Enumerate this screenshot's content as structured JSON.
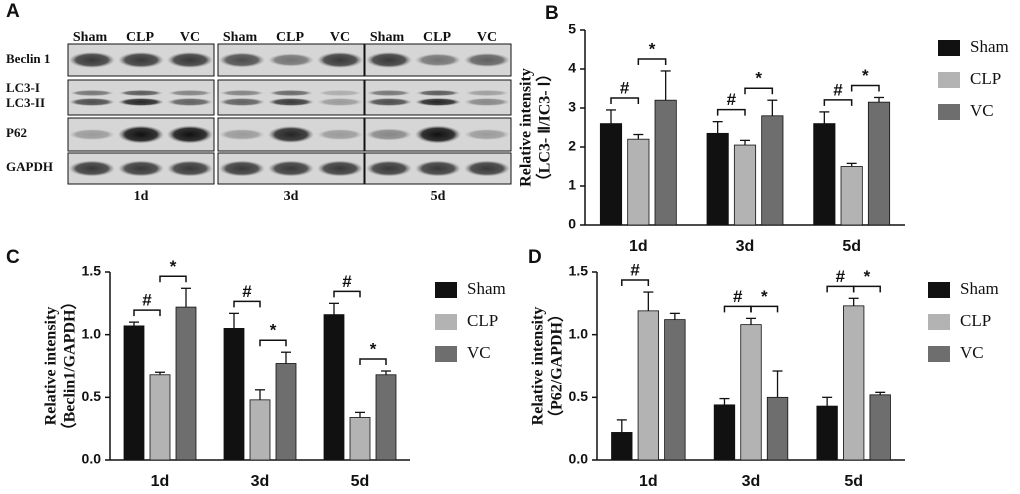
{
  "blot": {
    "label": "A",
    "rows": [
      "Beclin 1",
      "LC3-I",
      "LC3-II",
      "P62",
      "GAPDH"
    ],
    "lanes": [
      "Sham",
      "CLP",
      "VC"
    ],
    "days": [
      "1d",
      "3d",
      "5d"
    ]
  },
  "chart_data": [
    {
      "type": "bar",
      "label": "B",
      "y_label": [
        "Relative intensity",
        "（LC3- Ⅱ/IC3- Ⅰ）"
      ],
      "categories": [
        "1d",
        "3d",
        "5d"
      ],
      "series": [
        {
          "name": "Sham",
          "color": "#111111",
          "values": [
            2.6,
            2.35,
            2.6
          ],
          "errors": [
            0.35,
            0.3,
            0.3
          ]
        },
        {
          "name": "CLP",
          "color": "#b3b3b3",
          "values": [
            2.2,
            2.05,
            1.5
          ],
          "errors": [
            0.12,
            0.12,
            0.08
          ]
        },
        {
          "name": "VC",
          "color": "#6e6e6e",
          "values": [
            3.2,
            2.8,
            3.15
          ],
          "errors": [
            0.75,
            0.4,
            0.12
          ]
        }
      ],
      "ylim": [
        0,
        5
      ],
      "yticks": [
        0,
        1,
        2,
        3,
        4,
        5
      ],
      "annotations": [
        {
          "text": "#",
          "category": 0,
          "from": 0,
          "to": 1
        },
        {
          "text": "*",
          "category": 0,
          "from": 1,
          "to": 2
        },
        {
          "text": "#",
          "category": 1,
          "from": 0,
          "to": 1
        },
        {
          "text": "*",
          "category": 1,
          "from": 1,
          "to": 2
        },
        {
          "text": "#",
          "category": 2,
          "from": 0,
          "to": 1
        },
        {
          "text": "*",
          "category": 2,
          "from": 1,
          "to": 2
        }
      ]
    },
    {
      "type": "bar",
      "label": "C",
      "y_label": [
        "Relative intensity",
        "（Beclin1/GAPDH）"
      ],
      "categories": [
        "1d",
        "3d",
        "5d"
      ],
      "series": [
        {
          "name": "Sham",
          "color": "#111111",
          "values": [
            1.07,
            1.05,
            1.16
          ],
          "errors": [
            0.03,
            0.12,
            0.09
          ]
        },
        {
          "name": "CLP",
          "color": "#b3b3b3",
          "values": [
            0.68,
            0.48,
            0.34
          ],
          "errors": [
            0.02,
            0.08,
            0.04
          ]
        },
        {
          "name": "VC",
          "color": "#6e6e6e",
          "values": [
            1.22,
            0.77,
            0.68
          ],
          "errors": [
            0.15,
            0.09,
            0.03
          ]
        }
      ],
      "ylim": [
        0,
        1.5
      ],
      "yticks": [
        {
          "value": 0,
          "label": "0.0"
        },
        {
          "value": 0.5,
          "label": "0.5"
        },
        {
          "value": 1,
          "label": "1.0"
        },
        {
          "value": 1.5,
          "label": "1.5"
        }
      ],
      "annotations": [
        {
          "text": "#",
          "category": 0,
          "from": 0,
          "to": 1
        },
        {
          "text": "*",
          "category": 0,
          "from": 1,
          "to": 2
        },
        {
          "text": "#",
          "category": 1,
          "from": 0,
          "to": 1
        },
        {
          "text": "*",
          "category": 1,
          "from": 1,
          "to": 2
        },
        {
          "text": "#",
          "category": 2,
          "from": 0,
          "to": 1
        },
        {
          "text": "*",
          "category": 2,
          "from": 1,
          "to": 2
        }
      ]
    },
    {
      "type": "bar",
      "label": "D",
      "y_label": [
        "Relative intensity",
        "（P62/GAPDH）"
      ],
      "categories": [
        "1d",
        "3d",
        "5d"
      ],
      "series": [
        {
          "name": "Sham",
          "color": "#111111",
          "values": [
            0.22,
            0.44,
            0.43
          ],
          "errors": [
            0.1,
            0.05,
            0.07
          ]
        },
        {
          "name": "CLP",
          "color": "#b3b3b3",
          "values": [
            1.19,
            1.08,
            1.23
          ],
          "errors": [
            0.15,
            0.05,
            0.06
          ]
        },
        {
          "name": "VC",
          "color": "#6e6e6e",
          "values": [
            1.12,
            0.5,
            0.52
          ],
          "errors": [
            0.05,
            0.21,
            0.02
          ]
        }
      ],
      "ylim": [
        0,
        1.5
      ],
      "yticks": [
        {
          "value": 0,
          "label": "0.0"
        },
        {
          "value": 0.5,
          "label": "0.5"
        },
        {
          "value": 1,
          "label": "1.0"
        },
        {
          "value": 1.5,
          "label": "1.5"
        }
      ],
      "annotations": [
        {
          "text": "#",
          "category": 0,
          "from": 0,
          "to": 1
        },
        {
          "text": "#",
          "category": 1,
          "from": 0,
          "to": 1
        },
        {
          "text": "*",
          "category": 1,
          "from": 1,
          "to": 2
        },
        {
          "text": "#",
          "category": 2,
          "from": 0,
          "to": 1
        },
        {
          "text": "*",
          "category": 2,
          "from": 1,
          "to": 2
        }
      ]
    }
  ]
}
